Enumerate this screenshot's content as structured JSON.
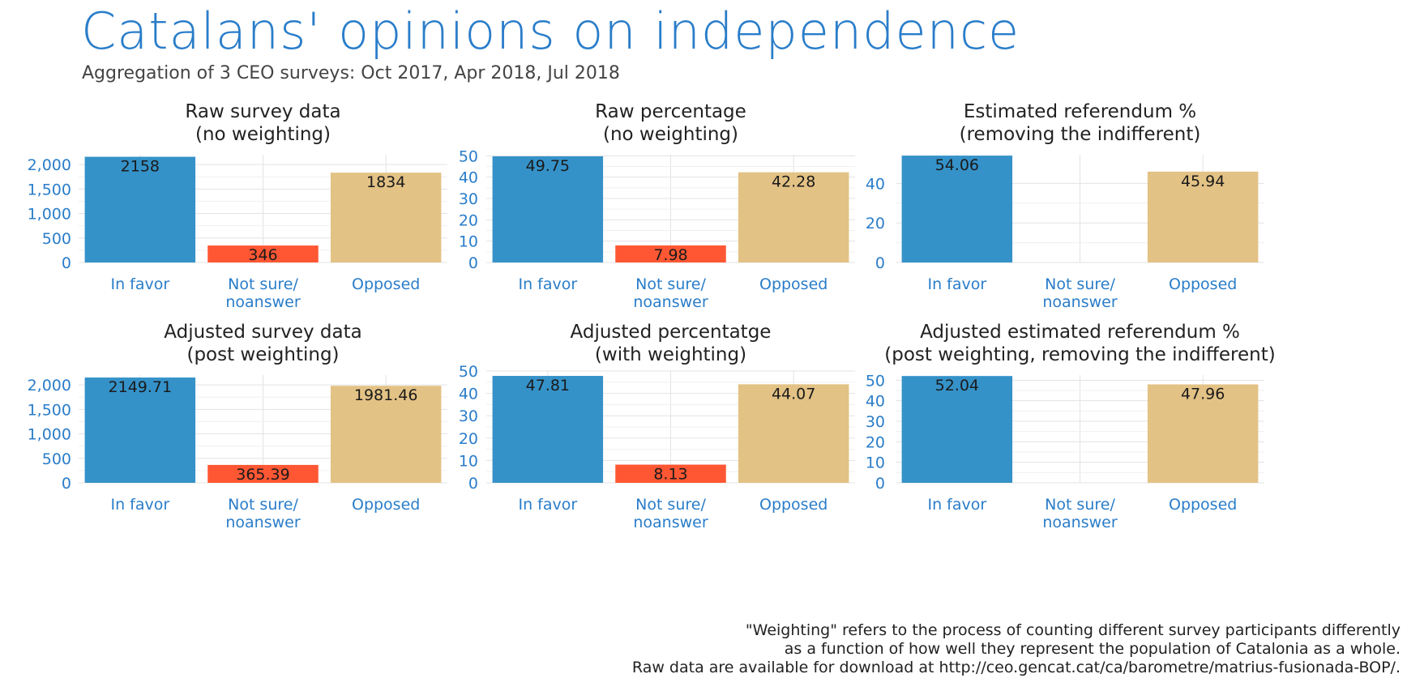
{
  "title": "Catalans' opinions on independence",
  "subtitle": "Aggregation of 3 CEO surveys: Oct 2017, Apr 2018, Jul 2018",
  "footnote": [
    "\"Weighting\" refers to the process of counting different survey participants differently",
    "as a function of how well they represent the population of Catalonia as a whole.",
    "Raw data are available for download at http://ceo.gencat.cat/ca/barometre/matrius-fusionada-BOP/."
  ],
  "colors": {
    "in_favor": "#3592c9",
    "not_sure": "#ff5733",
    "opposed": "#e3c285",
    "axis_text": "#2a7dc9",
    "grid": "#e3e3e3"
  },
  "chart_data": [
    {
      "type": "bar",
      "title": [
        "Raw survey data",
        "(no weighting)"
      ],
      "categories": [
        "In favor",
        "Not sure/\nnoanswer",
        "Opposed"
      ],
      "values": [
        2158,
        346,
        1834
      ],
      "value_labels": [
        "2158",
        "346",
        "1834"
      ],
      "ylim": [
        0,
        2200
      ],
      "yticks": [
        0,
        500,
        1000,
        1500,
        2000
      ],
      "ytick_labels": [
        "0",
        "500",
        "1,000",
        "1,500",
        "2,000"
      ],
      "grid": true
    },
    {
      "type": "bar",
      "title": [
        "Raw percentage",
        "(no weighting)"
      ],
      "categories": [
        "In favor",
        "Not sure/\nnoanswer",
        "Opposed"
      ],
      "values": [
        49.75,
        7.98,
        42.28
      ],
      "value_labels": [
        "49.75",
        "7.98",
        "42.28"
      ],
      "ylim": [
        0,
        50.5
      ],
      "yticks": [
        0,
        10,
        20,
        30,
        40,
        50
      ],
      "ytick_labels": [
        "0",
        "10",
        "20",
        "30",
        "40",
        "50"
      ],
      "grid": true
    },
    {
      "type": "bar",
      "title": [
        "Estimated referendum %",
        "(removing the indifferent)"
      ],
      "categories": [
        "In favor",
        "Not sure/\nnoanswer",
        "Opposed"
      ],
      "values": [
        54.06,
        null,
        45.94
      ],
      "value_labels": [
        "54.06",
        "",
        "45.94"
      ],
      "ylim": [
        0,
        54.5
      ],
      "yticks": [
        0,
        20,
        40
      ],
      "ytick_labels": [
        "0",
        "20",
        "40"
      ],
      "grid": true
    },
    {
      "type": "bar",
      "title": [
        "Adjusted survey data",
        "(post weighting)"
      ],
      "categories": [
        "In favor",
        "Not sure/\nnoanswer",
        "Opposed"
      ],
      "values": [
        2149.71,
        365.39,
        1981.46
      ],
      "value_labels": [
        "2149.71",
        "365.39",
        "1981.46"
      ],
      "ylim": [
        0,
        2200
      ],
      "yticks": [
        0,
        500,
        1000,
        1500,
        2000
      ],
      "ytick_labels": [
        "0",
        "500",
        "1,000",
        "1,500",
        "2,000"
      ],
      "grid": true
    },
    {
      "type": "bar",
      "title": [
        "Adjusted percentatge",
        "(with weighting)"
      ],
      "categories": [
        "In favor",
        "Not sure/\nnoanswer",
        "Opposed"
      ],
      "values": [
        47.81,
        8.13,
        44.07
      ],
      "value_labels": [
        "47.81",
        "8.13",
        "44.07"
      ],
      "ylim": [
        0,
        50
      ],
      "yticks": [
        0,
        10,
        20,
        30,
        40,
        50
      ],
      "ytick_labels": [
        "0",
        "10",
        "20",
        "30",
        "40",
        "50"
      ],
      "grid": true
    },
    {
      "type": "bar",
      "title": [
        "Adjusted estimated referendum %",
        "(post weighting, removing the indifferent)"
      ],
      "categories": [
        "In favor",
        "Not sure/\nnoanswer",
        "Opposed"
      ],
      "values": [
        52.04,
        null,
        47.96
      ],
      "value_labels": [
        "52.04",
        "",
        "47.96"
      ],
      "ylim": [
        0,
        52.5
      ],
      "yticks": [
        0,
        10,
        20,
        30,
        40,
        50
      ],
      "ytick_labels": [
        "0",
        "10",
        "20",
        "30",
        "40",
        "50"
      ],
      "grid": true
    }
  ]
}
